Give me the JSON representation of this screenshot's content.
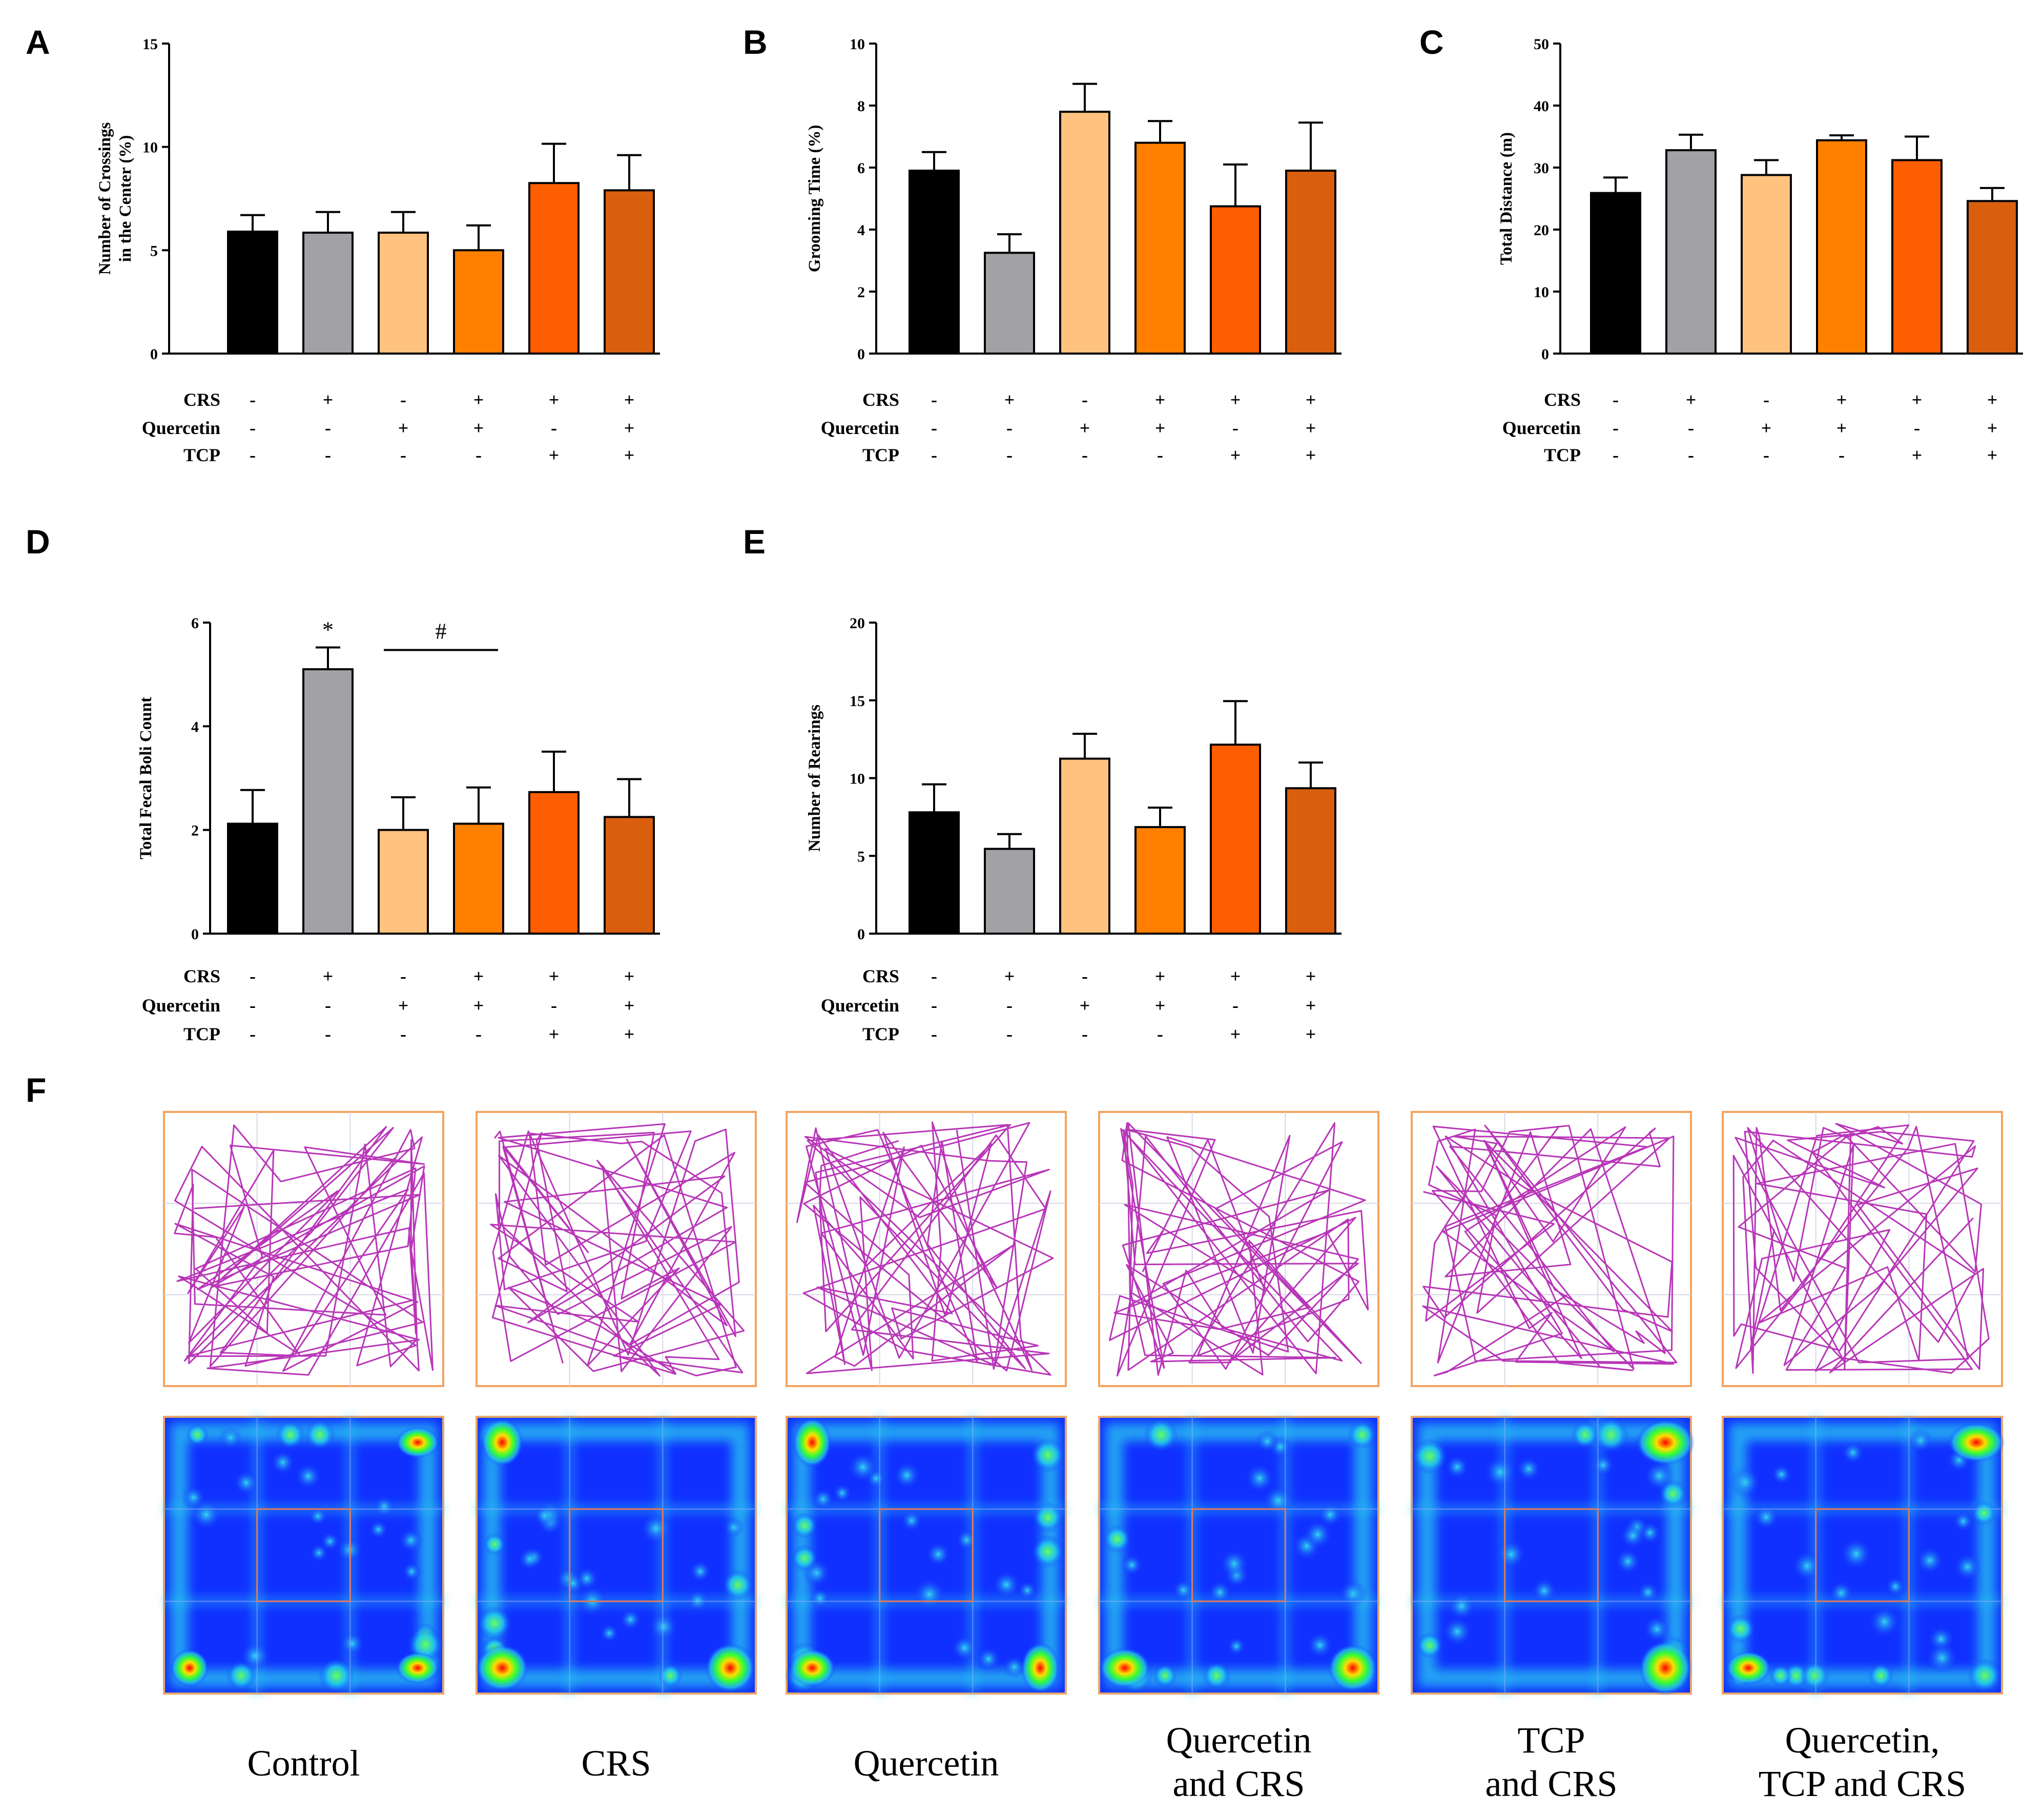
{
  "panel_labels": [
    "A",
    "B",
    "C",
    "D",
    "E",
    "F"
  ],
  "colors": {
    "Control": "#000000",
    "CRS": "#a1a1a6",
    "Quercetin": "#ffc27f",
    "Quercetin and CRS": "#ff8000",
    "TCP and CRS": "#ff5e00",
    "Quercetin, TCP and CRS": "#d95f0e",
    "track": "#b836b8",
    "frame": "#f4a460"
  },
  "condition_rows": [
    {
      "name": "CRS",
      "signs": [
        "-",
        "+",
        "-",
        "+",
        "+",
        "+"
      ]
    },
    {
      "name": "Quercetin",
      "signs": [
        "-",
        "-",
        "+",
        "+",
        "-",
        "+"
      ]
    },
    {
      "name": "TCP",
      "signs": [
        "-",
        "-",
        "-",
        "-",
        "+",
        "+"
      ]
    }
  ],
  "chart_data": [
    {
      "panel": "A",
      "type": "bar",
      "categories": [
        "Control",
        "CRS",
        "Quercetin",
        "Quercetin and CRS",
        "TCP and CRS",
        "Quercetin, TCP and CRS"
      ],
      "values": [
        5.9,
        5.85,
        5.85,
        5.0,
        8.25,
        7.9
      ],
      "errors": [
        0.8,
        1.0,
        1.0,
        1.2,
        1.9,
        1.7
      ],
      "ylabel": [
        "Number of Crossings",
        "in the Center (%)"
      ],
      "ylim": [
        0,
        15
      ],
      "yticks": [
        0,
        5,
        10,
        15
      ]
    },
    {
      "panel": "B",
      "type": "bar",
      "categories": [
        "Control",
        "CRS",
        "Quercetin",
        "Quercetin and CRS",
        "TCP and CRS",
        "Quercetin, TCP and CRS"
      ],
      "values": [
        5.9,
        3.25,
        7.8,
        6.8,
        4.75,
        5.9
      ],
      "errors": [
        0.6,
        0.6,
        0.9,
        0.7,
        1.35,
        1.55
      ],
      "ylabel": [
        "Grooming Time (%)"
      ],
      "ylim": [
        0,
        10
      ],
      "yticks": [
        0,
        2,
        4,
        6,
        8,
        10
      ]
    },
    {
      "panel": "C",
      "type": "bar",
      "categories": [
        "Control",
        "CRS",
        "Quercetin",
        "Quercetin and CRS",
        "TCP and CRS",
        "Quercetin, TCP and CRS"
      ],
      "values": [
        25.9,
        32.8,
        28.8,
        34.4,
        31.2,
        24.6
      ],
      "errors": [
        2.5,
        2.5,
        2.4,
        0.8,
        3.8,
        2.1
      ],
      "ylabel": [
        "Total Distance (m)"
      ],
      "ylim": [
        0,
        50
      ],
      "yticks": [
        0,
        10,
        20,
        30,
        40,
        50
      ]
    },
    {
      "panel": "D",
      "type": "bar",
      "categories": [
        "Control",
        "CRS",
        "Quercetin",
        "Quercetin and CRS",
        "TCP and CRS",
        "Quercetin, TCP and CRS"
      ],
      "values": [
        2.12,
        5.1,
        2.0,
        2.12,
        2.73,
        2.25
      ],
      "errors": [
        0.65,
        0.42,
        0.63,
        0.7,
        0.78,
        0.73
      ],
      "ylabel": [
        "Total Fecal Boli Count"
      ],
      "ylim": [
        0,
        6
      ],
      "yticks": [
        0,
        2,
        4,
        6
      ],
      "annotations": [
        {
          "text": "*",
          "bar": 1
        },
        {
          "text": "#",
          "from_bar": 2,
          "to_bar": 3
        }
      ]
    },
    {
      "panel": "E",
      "type": "bar",
      "categories": [
        "Control",
        "CRS",
        "Quercetin",
        "Quercetin and CRS",
        "TCP and CRS",
        "Quercetin, TCP and CRS"
      ],
      "values": [
        7.8,
        5.45,
        11.25,
        6.85,
        12.15,
        9.35
      ],
      "errors": [
        1.8,
        0.95,
        1.6,
        1.25,
        2.8,
        1.65
      ],
      "ylabel": [
        "Number of Rearings"
      ],
      "ylim": [
        0,
        20
      ],
      "yticks": [
        0,
        5,
        10,
        15,
        20
      ]
    }
  ],
  "groups": [
    {
      "name_lines": [
        "Control"
      ]
    },
    {
      "name_lines": [
        "CRS"
      ]
    },
    {
      "name_lines": [
        "Quercetin"
      ]
    },
    {
      "name_lines": [
        "Quercetin",
        "and CRS"
      ]
    },
    {
      "name_lines": [
        "TCP",
        "and CRS"
      ]
    },
    {
      "name_lines": [
        "Quercetin,",
        "TCP and CRS"
      ]
    }
  ]
}
